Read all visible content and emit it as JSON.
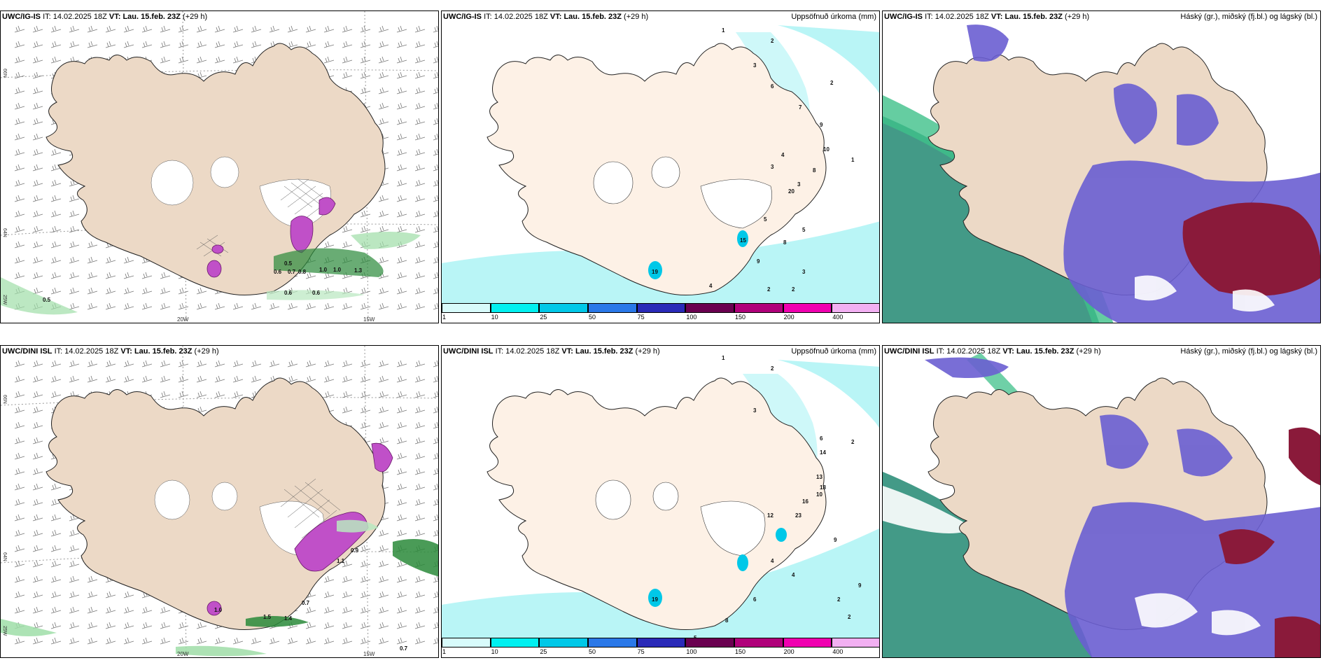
{
  "panels": [
    {
      "model": "UWC/IG-IS",
      "it_label": "IT:",
      "it": "14.02.2025 18Z",
      "vt_label": "VT:",
      "vt": "Lau. 15.feb. 23Z",
      "lead": "(+29 h)",
      "right_label": ""
    },
    {
      "model": "UWC/IG-IS",
      "it_label": "IT:",
      "it": "14.02.2025 18Z",
      "vt_label": "VT:",
      "vt": "Lau. 15.feb. 23Z",
      "lead": "(+29 h)",
      "right_label": "Uppsöfnuð úrkoma (mm)"
    },
    {
      "model": "UWC/IG-IS",
      "it_label": "IT:",
      "it": "14.02.2025 18Z",
      "vt_label": "VT:",
      "vt": "Lau. 15.feb. 23Z",
      "lead": "(+29 h)",
      "right_label": "Háský (gr.), miðský (fj.bl.) og lágský (bl.)"
    },
    {
      "model": "UWC/DINI ISL",
      "it_label": "IT:",
      "it": "14.02.2025 18Z",
      "vt_label": "VT:",
      "vt": "Lau. 15.feb. 23Z",
      "lead": "(+29 h)",
      "right_label": ""
    },
    {
      "model": "UWC/DINI ISL",
      "it_label": "IT:",
      "it": "14.02.2025 18Z",
      "vt_label": "VT:",
      "vt": "Lau. 15.feb. 23Z",
      "lead": "(+29 h)",
      "right_label": "Uppsöfnuð úrkoma (mm)"
    },
    {
      "model": "UWC/DINI ISL",
      "it_label": "IT:",
      "it": "14.02.2025 18Z",
      "vt_label": "VT:",
      "vt": "Lau. 15.feb. 23Z",
      "lead": "(+29 h)",
      "right_label": "Háský (gr.), miðský (fj.bl.) og lágský (bl.)"
    }
  ],
  "axes": {
    "lat66": "66N",
    "lat64": "64N",
    "lon25": "25W",
    "lon20": "20W",
    "lon15": "15W"
  },
  "colorbar": {
    "ticks": [
      "1",
      "10",
      "25",
      "50",
      "75",
      "100",
      "150",
      "200",
      "400"
    ],
    "colors": [
      "#d8fbfb",
      "#00f0f0",
      "#00c8e8",
      "#2a78e8",
      "#2a2ab8",
      "#6a0050",
      "#b0007a",
      "#f000b0",
      "#f2b0f2"
    ]
  },
  "colors": {
    "land": "#ecd9c6",
    "precip_land": "#fdf1e6",
    "sea_precip": "#b9f5f6",
    "high_cloud": "#2f8f7a",
    "mid_cloud": "#6a5ed2",
    "low_cloud": "#8a1a3a",
    "snow": "#ffffff"
  },
  "precip_values_top": [
    "1",
    "3",
    "2",
    "6",
    "7",
    "9",
    "8",
    "10",
    "20",
    "5",
    "2",
    "1",
    "4",
    "3",
    "3",
    "8",
    "5",
    "3",
    "2",
    "2",
    "15",
    "19",
    "9",
    "4"
  ],
  "precip_values_bottom": [
    "1",
    "2",
    "3",
    "6",
    "14",
    "13",
    "18",
    "16",
    "23",
    "10",
    "2",
    "9",
    "4",
    "8",
    "6",
    "5",
    "2",
    "2",
    "12",
    "19",
    "9",
    "4"
  ],
  "wind_values_top": [
    "0.5",
    "0.6",
    "1.0",
    "1.0",
    "1.3",
    "0.5",
    "0.6",
    "0.6",
    "0.7",
    "0.8"
  ],
  "wind_values_bottom": [
    "0.9",
    "1.1",
    "0.7",
    "1.4",
    "1.5",
    "0.7",
    "1.0"
  ]
}
